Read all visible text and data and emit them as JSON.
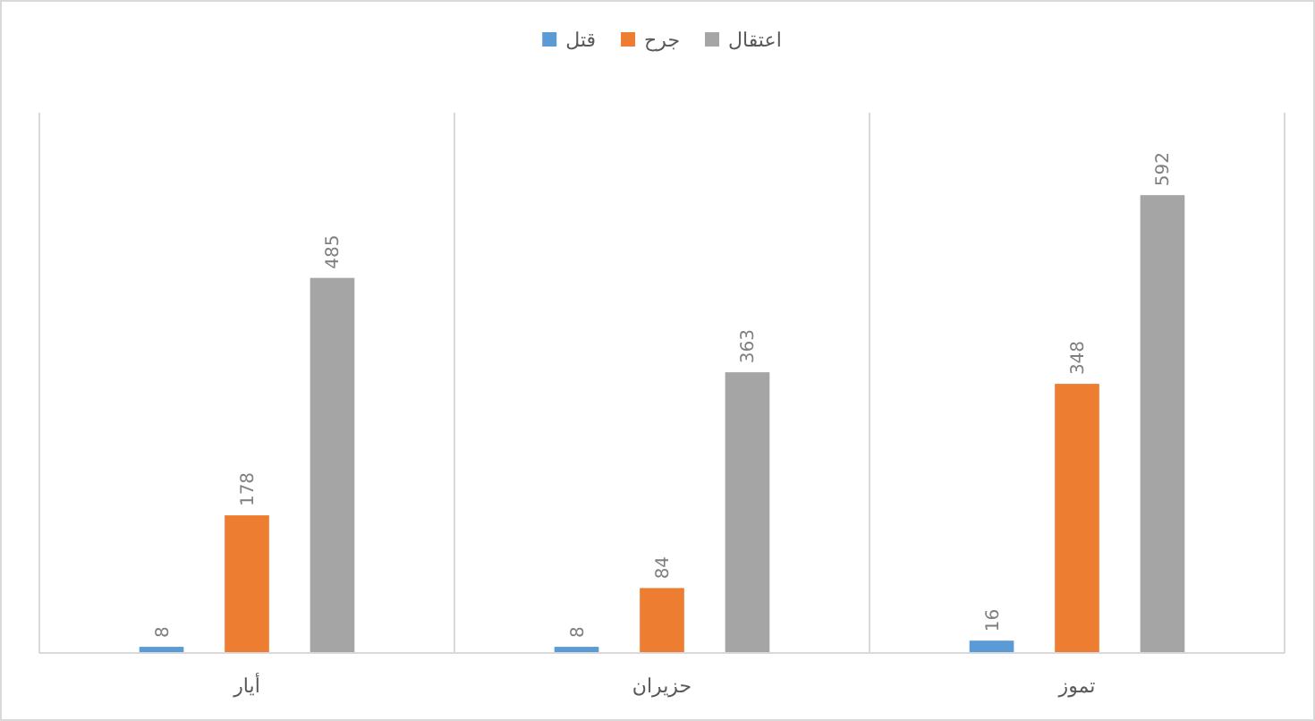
{
  "chart_data": {
    "type": "bar",
    "categories": [
      "أيار",
      "حزيران",
      "تموز"
    ],
    "series": [
      {
        "name": "قتل",
        "color": "#5b9bd5",
        "values": [
          8,
          8,
          16
        ]
      },
      {
        "name": "جرح",
        "color": "#ed7d31",
        "values": [
          178,
          84,
          348
        ]
      },
      {
        "name": "اعتقال",
        "color": "#a5a5a5",
        "values": [
          485,
          363,
          592
        ]
      }
    ],
    "data_labels": true,
    "grid": "x",
    "legend": "top"
  }
}
